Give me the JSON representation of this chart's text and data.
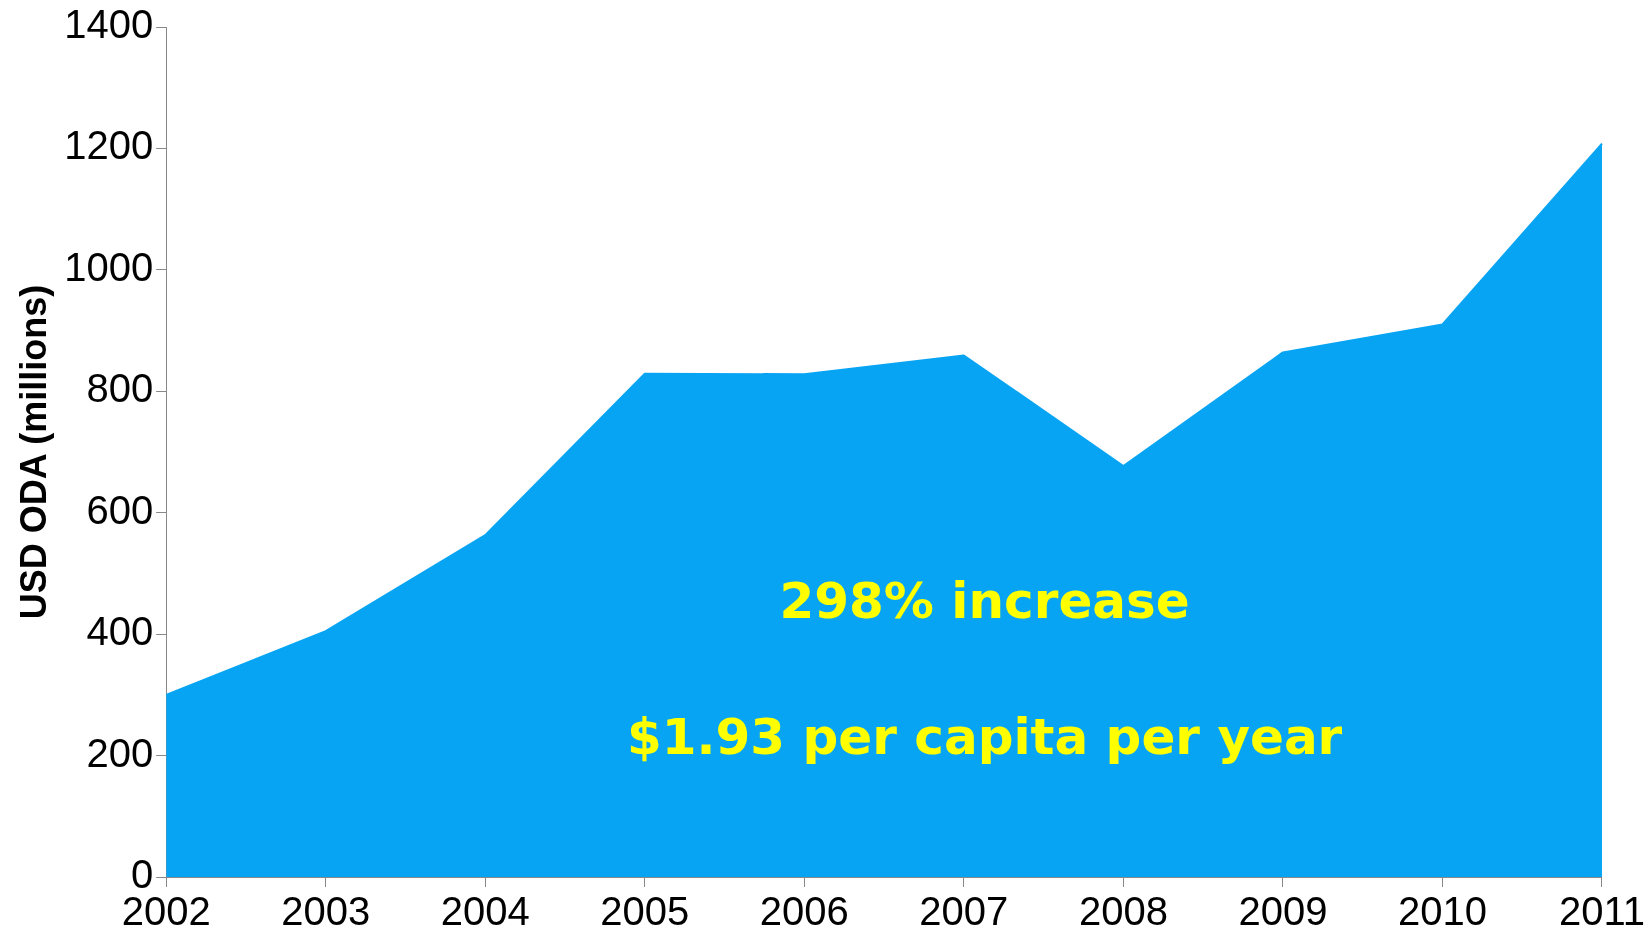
{
  "chart_data": {
    "type": "area",
    "ylabel": "USD ODA (millions)",
    "categories": [
      "2002",
      "2003",
      "2004",
      "2005",
      "2006",
      "2007",
      "2008",
      "2009",
      "2010",
      "2011"
    ],
    "series": [
      {
        "color": "#08a4f4",
        "values": [
          300,
          405,
          563,
          829,
          828,
          859,
          677,
          864,
          910,
          1208
        ]
      }
    ],
    "ylim": [
      0,
      1400
    ],
    "yticks": [
      0,
      200,
      400,
      600,
      800,
      1000,
      1200,
      1400
    ],
    "grid": false,
    "legend": false,
    "marker": "none",
    "annotations": [
      "298% increase",
      "$1.93 per capita per year"
    ]
  }
}
